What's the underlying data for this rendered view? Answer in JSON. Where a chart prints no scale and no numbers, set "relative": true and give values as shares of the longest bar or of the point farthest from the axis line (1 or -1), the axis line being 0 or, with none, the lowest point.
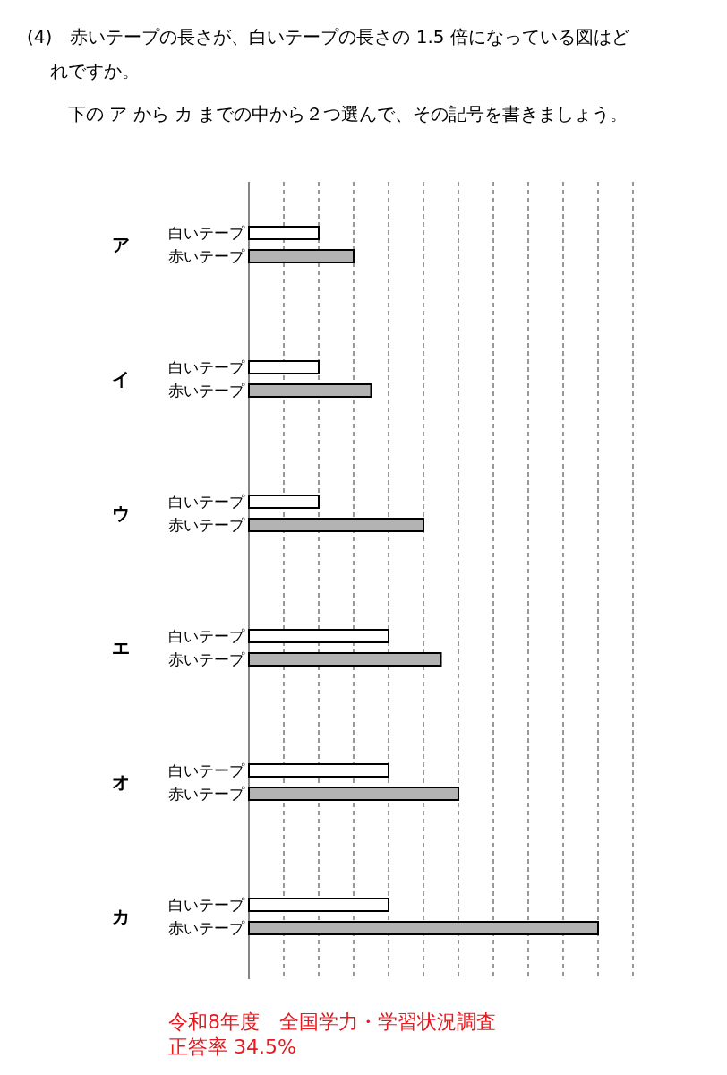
{
  "chart_data": {
    "type": "bar",
    "orientation": "horizontal",
    "relative": true,
    "title": "(4)　赤いテープの長さが、白いテープの長さの 1.5 倍になっている図はどれですか。",
    "subtitle": "下の ア から カ までの中から２つ選んで、その記号を書きましょう。",
    "categories": [
      "ア",
      "イ",
      "ウ",
      "エ",
      "オ",
      "カ"
    ],
    "series": [
      {
        "name": "白いテープ",
        "color": "#ffffff",
        "values": [
          0.2,
          0.2,
          0.2,
          0.4,
          0.4,
          0.4
        ]
      },
      {
        "name": "赤いテープ",
        "color": "#b3b3b3",
        "values": [
          0.3,
          0.35,
          0.5,
          0.55,
          0.6,
          1
        ]
      }
    ],
    "grid": "x",
    "annotations": [
      "令和8年度　全国学力・学習状況調査",
      "正答率 34.5%"
    ]
  }
}
